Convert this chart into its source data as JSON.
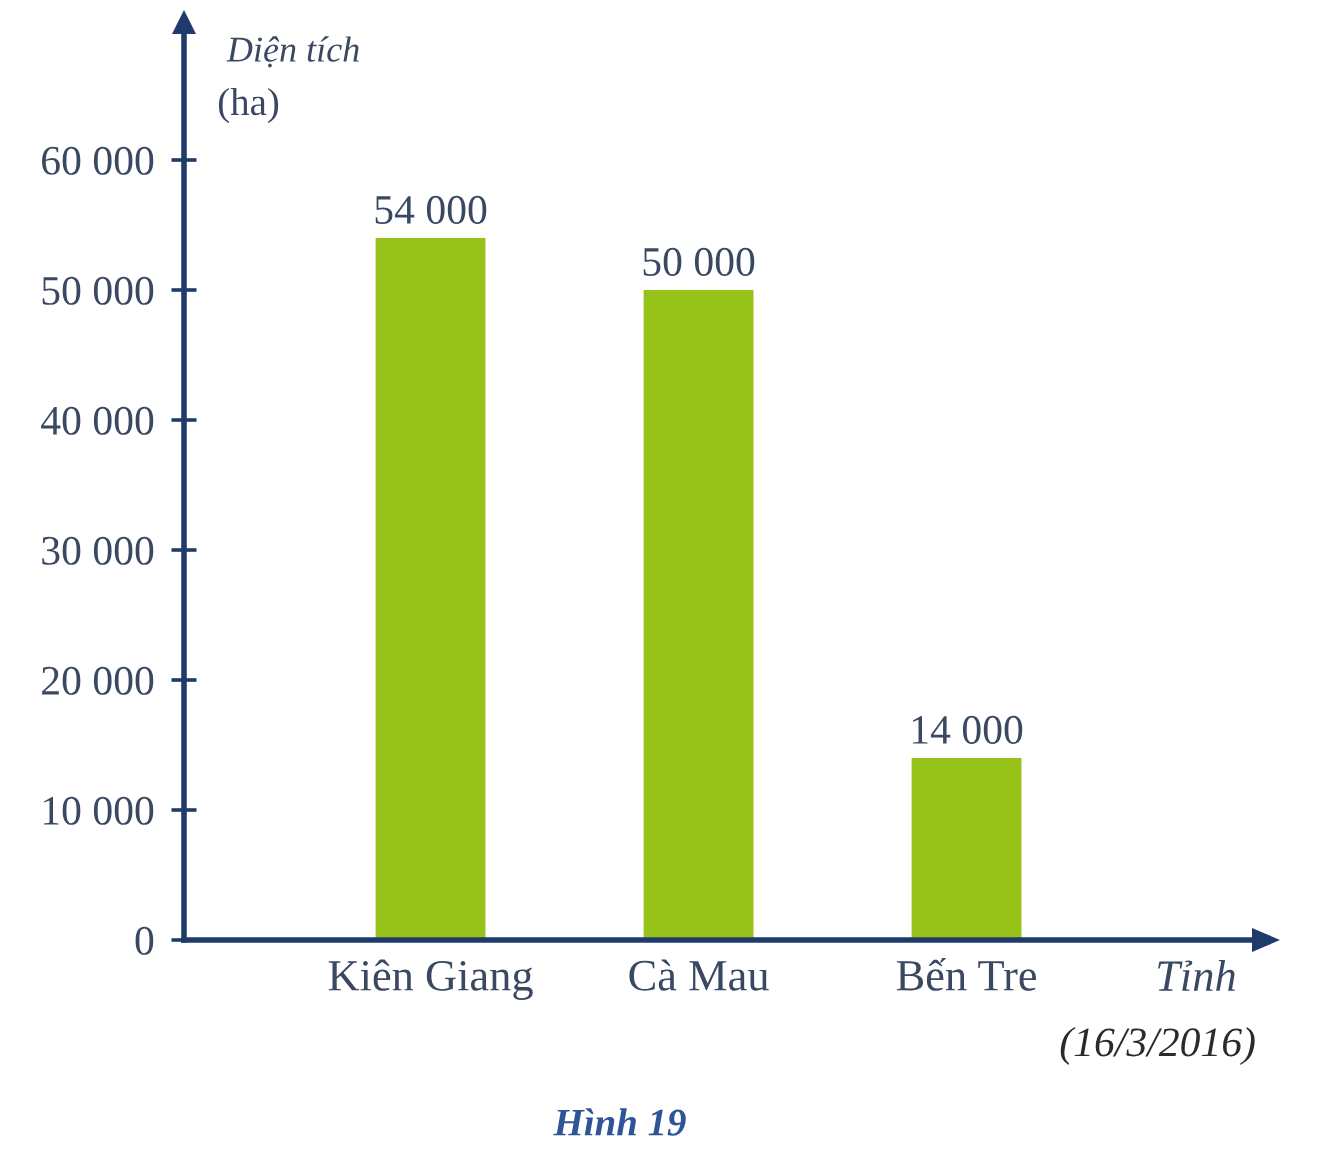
{
  "chart_data": {
    "type": "bar",
    "ylabel": "Diện tích\n(ha)",
    "xlabel": "Tỉnh",
    "categories": [
      "Kiên Giang",
      "Cà Mau",
      "Bến Tre"
    ],
    "values": [
      54000,
      50000,
      14000
    ],
    "color": "#97c21a",
    "value_labels": [
      "54 000",
      "50 000",
      "14 000"
    ],
    "ylim": [
      0,
      70000
    ],
    "yticks": [
      0,
      {
        "value": 10000,
        "label": "10 000"
      },
      {
        "value": 20000,
        "label": "20 000"
      },
      {
        "value": 30000,
        "label": "30 000"
      },
      {
        "value": 40000,
        "label": "40 000"
      },
      {
        "value": 50000,
        "label": "50 000"
      },
      {
        "value": 60000,
        "label": "60 000"
      }
    ],
    "annotations": [
      "(16/3/2016)",
      "Hình 19"
    ]
  }
}
